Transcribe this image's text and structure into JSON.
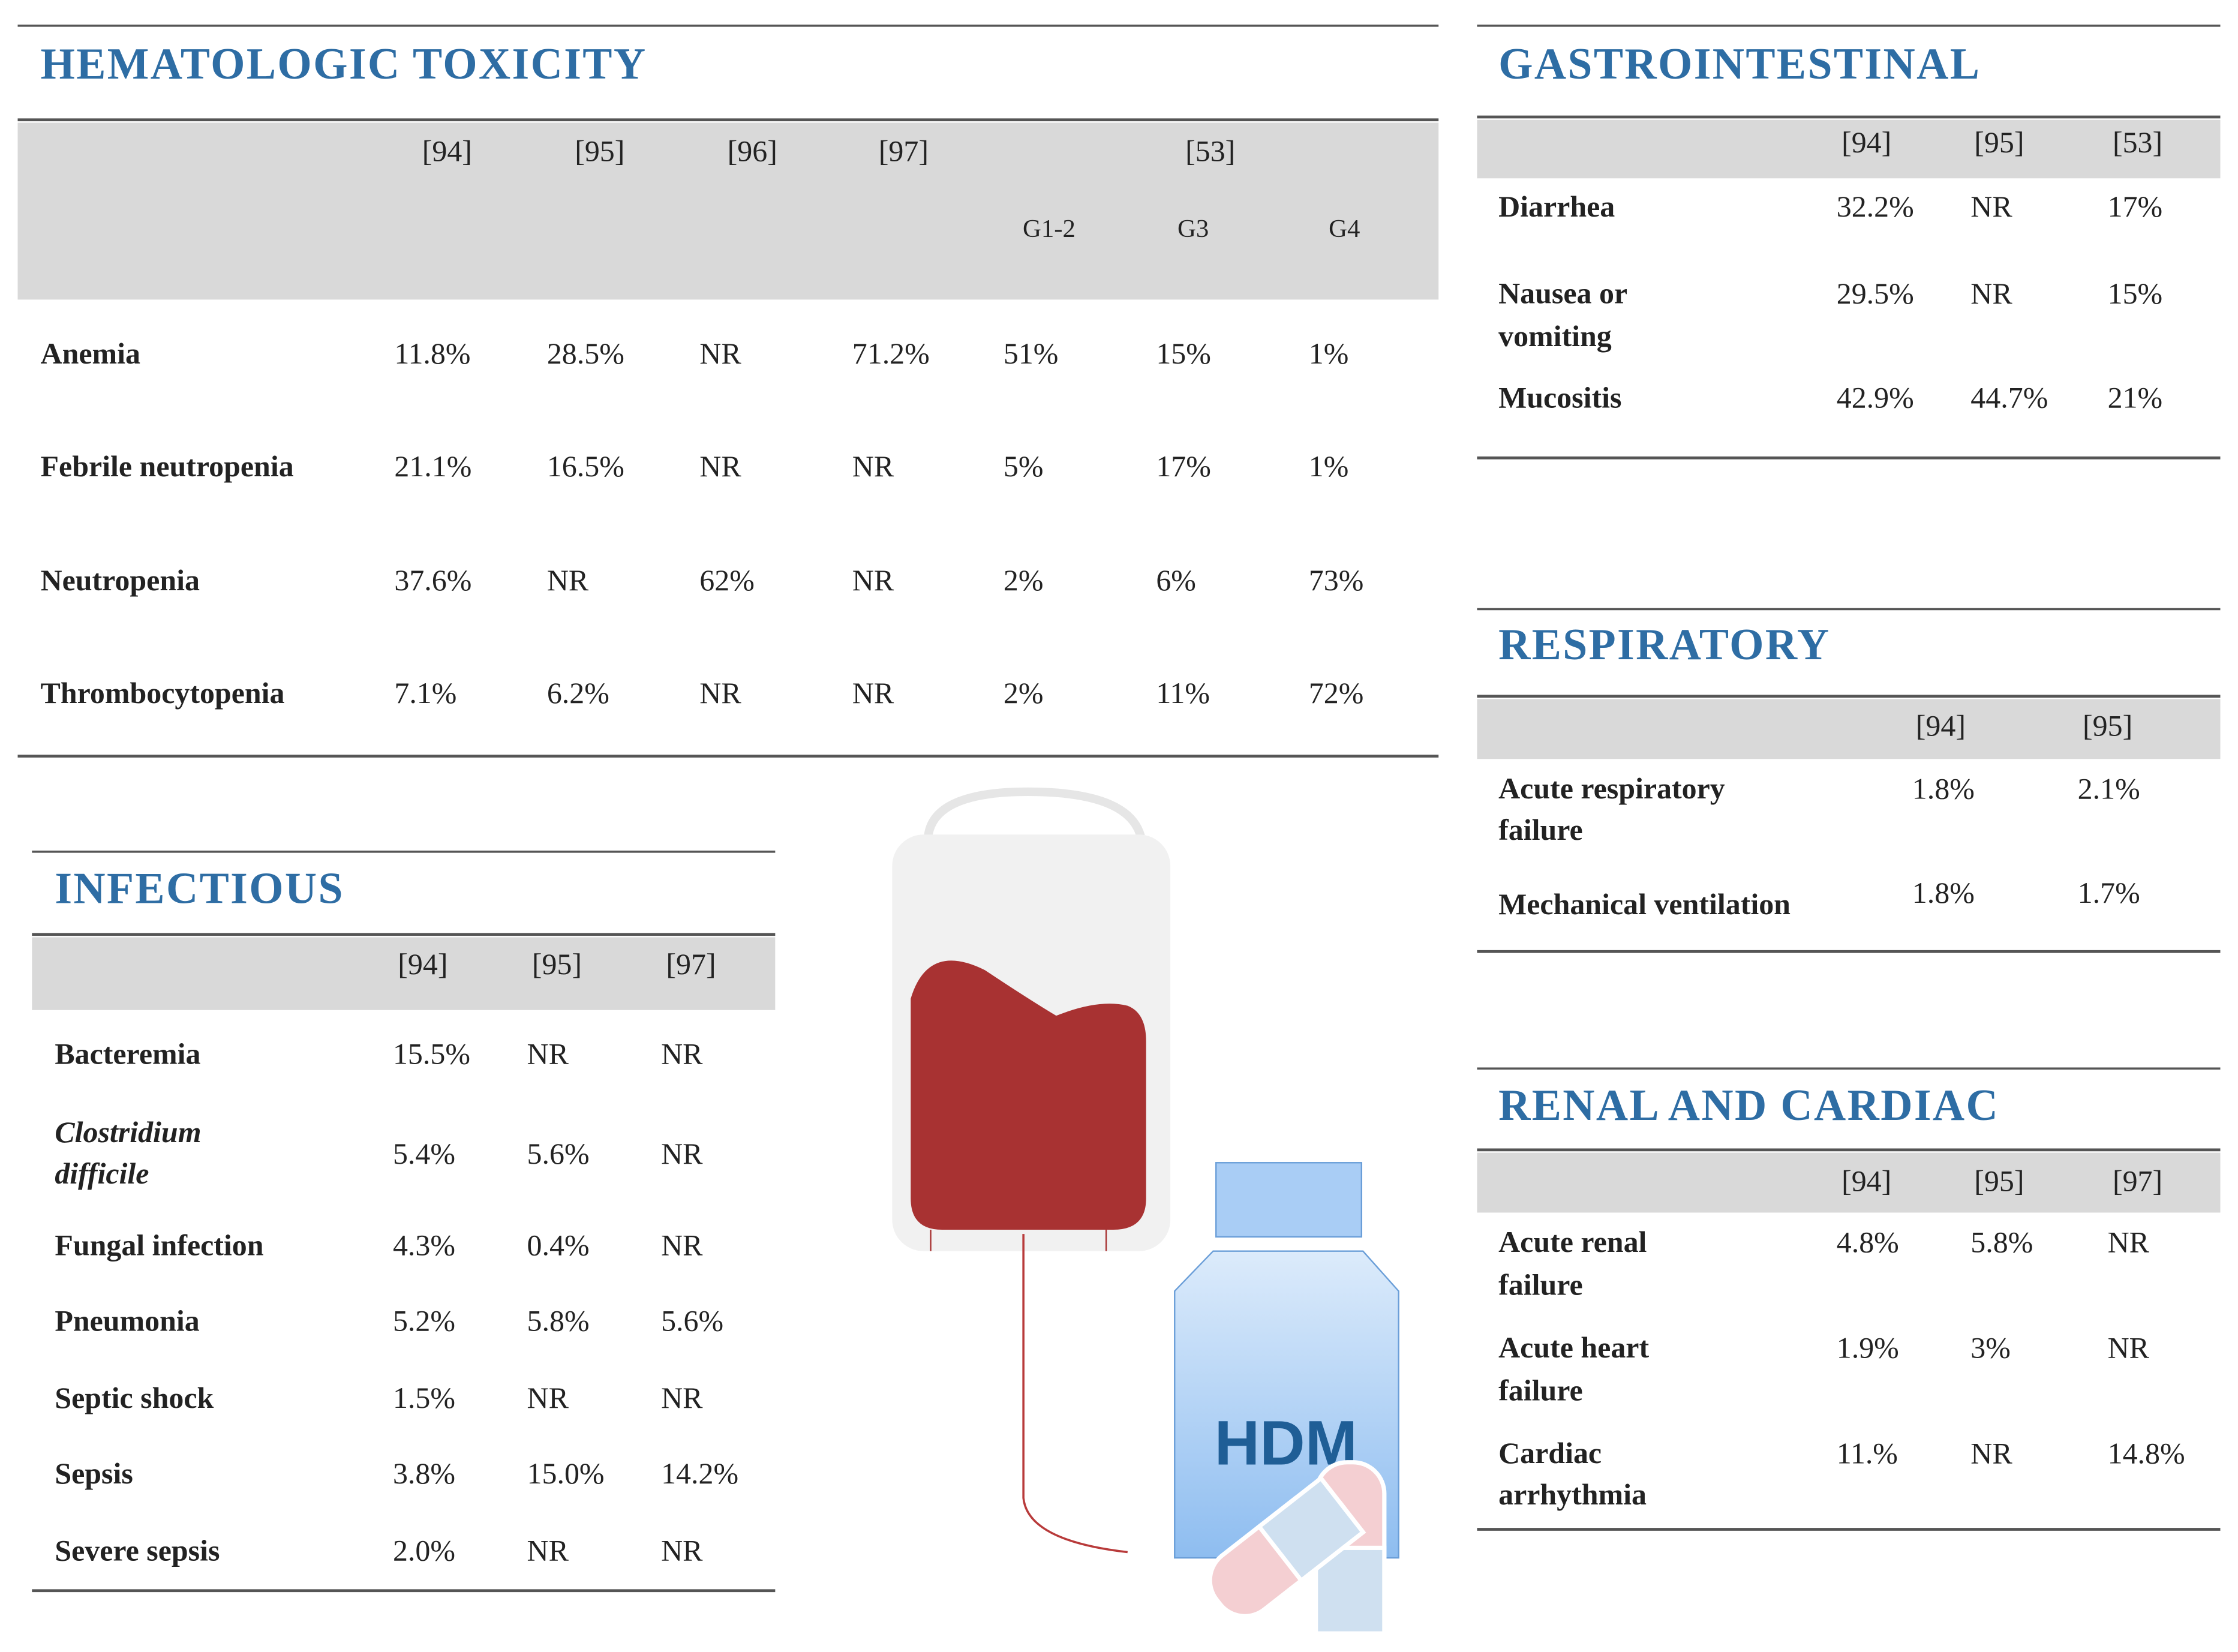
{
  "illustration_label": "HDM",
  "sections": [
    {
      "title": "HEMATOLOGIC TOXICITY",
      "headers": [
        "[94]",
        "[95]",
        "[96]",
        "[97]",
        "[53]"
      ],
      "subheaders": [
        "G1-2",
        "G3",
        "G4"
      ],
      "rows": [
        {
          "label": "Anemia",
          "values": [
            "11.8%",
            "28.5%",
            "NR",
            "71.2%",
            "51%",
            "15%",
            "1%"
          ]
        },
        {
          "label": "Febrile neutropenia",
          "values": [
            "21.1%",
            "16.5%",
            "NR",
            "NR",
            "5%",
            "17%",
            "1%"
          ]
        },
        {
          "label": "Neutropenia",
          "values": [
            "37.6%",
            "NR",
            "62%",
            "NR",
            "2%",
            "6%",
            "73%"
          ]
        },
        {
          "label": "Thrombocytopenia",
          "values": [
            "7.1%",
            "6.2%",
            "NR",
            "NR",
            "2%",
            "11%",
            "72%"
          ]
        }
      ]
    },
    {
      "title": "GASTROINTESTINAL",
      "headers": [
        "[94]",
        "[95]",
        "[53]"
      ],
      "rows": [
        {
          "label": "Diarrhea",
          "values": [
            "32.2%",
            "NR",
            "17%"
          ]
        },
        {
          "label": "Nausea or vomiting",
          "values": [
            "29.5%",
            "NR",
            "15%"
          ]
        },
        {
          "label": "Mucositis",
          "values": [
            "42.9%",
            "44.7%",
            "21%"
          ]
        }
      ]
    },
    {
      "title": "RESPIRATORY",
      "headers": [
        "[94]",
        "[95]"
      ],
      "rows": [
        {
          "label": "Acute respiratory failure",
          "values": [
            "1.8%",
            "2.1%"
          ]
        },
        {
          "label": "Mechanical ventilation",
          "values": [
            "1.8%",
            "1.7%"
          ]
        }
      ]
    },
    {
      "title": "RENAL AND CARDIAC",
      "headers": [
        "[94]",
        "[95]",
        "[97]"
      ],
      "rows": [
        {
          "label": "Acute renal failure",
          "values": [
            "4.8%",
            "5.8%",
            "NR"
          ]
        },
        {
          "label": "Acute heart failure",
          "values": [
            "1.9%",
            "3%",
            "NR"
          ]
        },
        {
          "label": "Cardiac arrhythmia",
          "values": [
            "11.%",
            "NR",
            "14.8%"
          ]
        }
      ]
    },
    {
      "title": "INFECTIOUS",
      "headers": [
        "[94]",
        "[95]",
        "[97]"
      ],
      "rows": [
        {
          "label": "Bacteremia",
          "values": [
            "15.5%",
            "NR",
            "NR"
          ]
        },
        {
          "label": "Clostridium difficile",
          "values": [
            "5.4%",
            "5.6%",
            "NR"
          ]
        },
        {
          "label": "Fungal infection",
          "values": [
            "4.3%",
            "0.4%",
            "NR"
          ]
        },
        {
          "label": "Pneumonia",
          "values": [
            "5.2%",
            "5.8%",
            "5.6%"
          ]
        },
        {
          "label": "Septic shock",
          "values": [
            "1.5%",
            "NR",
            "NR"
          ]
        },
        {
          "label": "Sepsis",
          "values": [
            "3.8%",
            "15.0%",
            "14.2%"
          ]
        },
        {
          "label": "Severe sepsis",
          "values": [
            "2.0%",
            "NR",
            "NR"
          ]
        }
      ]
    }
  ]
}
